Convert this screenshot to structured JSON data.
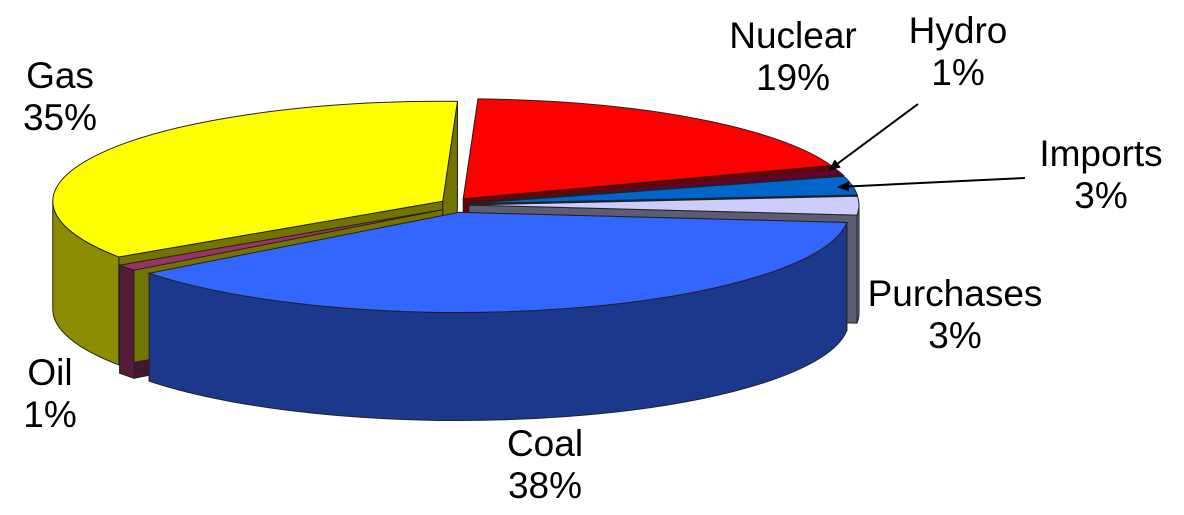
{
  "chart_data": {
    "type": "pie",
    "three_d": true,
    "title": "",
    "legend": "none",
    "slices": [
      {
        "label": "Nuclear",
        "value": 19,
        "value_label": "19%",
        "color": "#ff0000"
      },
      {
        "label": "Hydro",
        "value": 1,
        "value_label": "1%",
        "color": "#660033"
      },
      {
        "label": "Imports",
        "value": 3,
        "value_label": "3%",
        "color": "#0066cc"
      },
      {
        "label": "Purchases",
        "value": 3,
        "value_label": "3%",
        "color": "#ccccff"
      },
      {
        "label": "Coal",
        "value": 38,
        "value_label": "38%",
        "color": "#3366ff"
      },
      {
        "label": "Oil",
        "value": 1,
        "value_label": "1%",
        "color": "#993366"
      },
      {
        "label": "Gas",
        "value": 35,
        "value_label": "35%",
        "color": "#ffff00"
      }
    ]
  }
}
